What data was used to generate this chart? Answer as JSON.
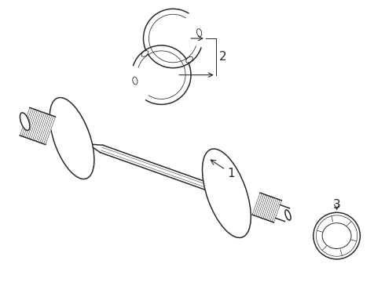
{
  "bg_color": "#ffffff",
  "line_color": "#2a2a2a",
  "label1": "1",
  "label2": "2",
  "label3": "3",
  "figsize": [
    4.9,
    3.6
  ],
  "dpi": 100
}
